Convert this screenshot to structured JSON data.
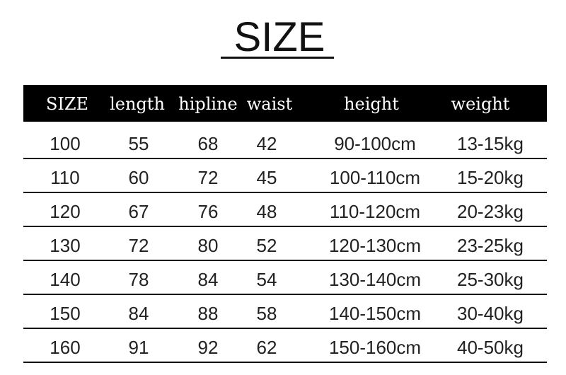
{
  "title": "SIZE",
  "table": {
    "headers": [
      "SIZE",
      "length",
      "hipline",
      "waist",
      "height",
      "weight"
    ],
    "rows": [
      [
        "100",
        "55",
        "68",
        "42",
        "90-100cm",
        "13-15kg"
      ],
      [
        "110",
        "60",
        "72",
        "45",
        "100-110cm",
        "15-20kg"
      ],
      [
        "120",
        "67",
        "76",
        "48",
        "110-120cm",
        "20-23kg"
      ],
      [
        "130",
        "72",
        "80",
        "52",
        "120-130cm",
        "23-25kg"
      ],
      [
        "140",
        "78",
        "84",
        "54",
        "130-140cm",
        "25-30kg"
      ],
      [
        "150",
        "84",
        "88",
        "58",
        "140-150cm",
        "30-40kg"
      ],
      [
        "160",
        "91",
        "92",
        "62",
        "150-160cm",
        "40-50kg"
      ]
    ]
  },
  "colors": {
    "header_bg": "#000000",
    "header_text": "#ffffff",
    "text": "#222222"
  }
}
